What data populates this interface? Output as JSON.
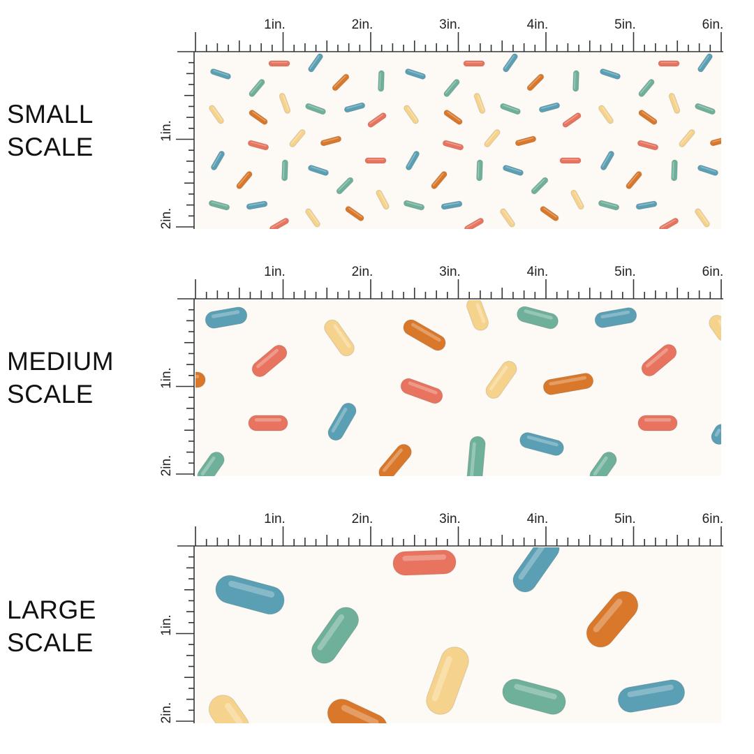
{
  "panels": [
    {
      "id": "small",
      "label_line1": "SMALL",
      "label_line2": "SCALE",
      "x_ticks": [
        "1in.",
        "2in.",
        "3in.",
        "4in.",
        "5in.",
        "6in."
      ],
      "y_ticks": [
        "1in.",
        "2in."
      ]
    },
    {
      "id": "medium",
      "label_line1": "MEDIUM",
      "label_line2": "SCALE",
      "x_ticks": [
        "1in.",
        "2in.",
        "3in.",
        "4in.",
        "5in.",
        "6in."
      ],
      "y_ticks": [
        "1in.",
        "2in."
      ]
    },
    {
      "id": "large",
      "label_line1": "LARGE",
      "label_line2": "SCALE",
      "x_ticks": [
        "1in.",
        "2in.",
        "3in.",
        "4in.",
        "5in.",
        "6in."
      ],
      "y_ticks": [
        "1in.",
        "2in."
      ]
    }
  ],
  "colors": {
    "background": "#fdf9f5",
    "blue": "#5a9fb4",
    "green": "#6fb09b",
    "orange": "#d9782a",
    "coral": "#e8735e",
    "yellow": "#f6d38c",
    "ruler": "#333333"
  }
}
